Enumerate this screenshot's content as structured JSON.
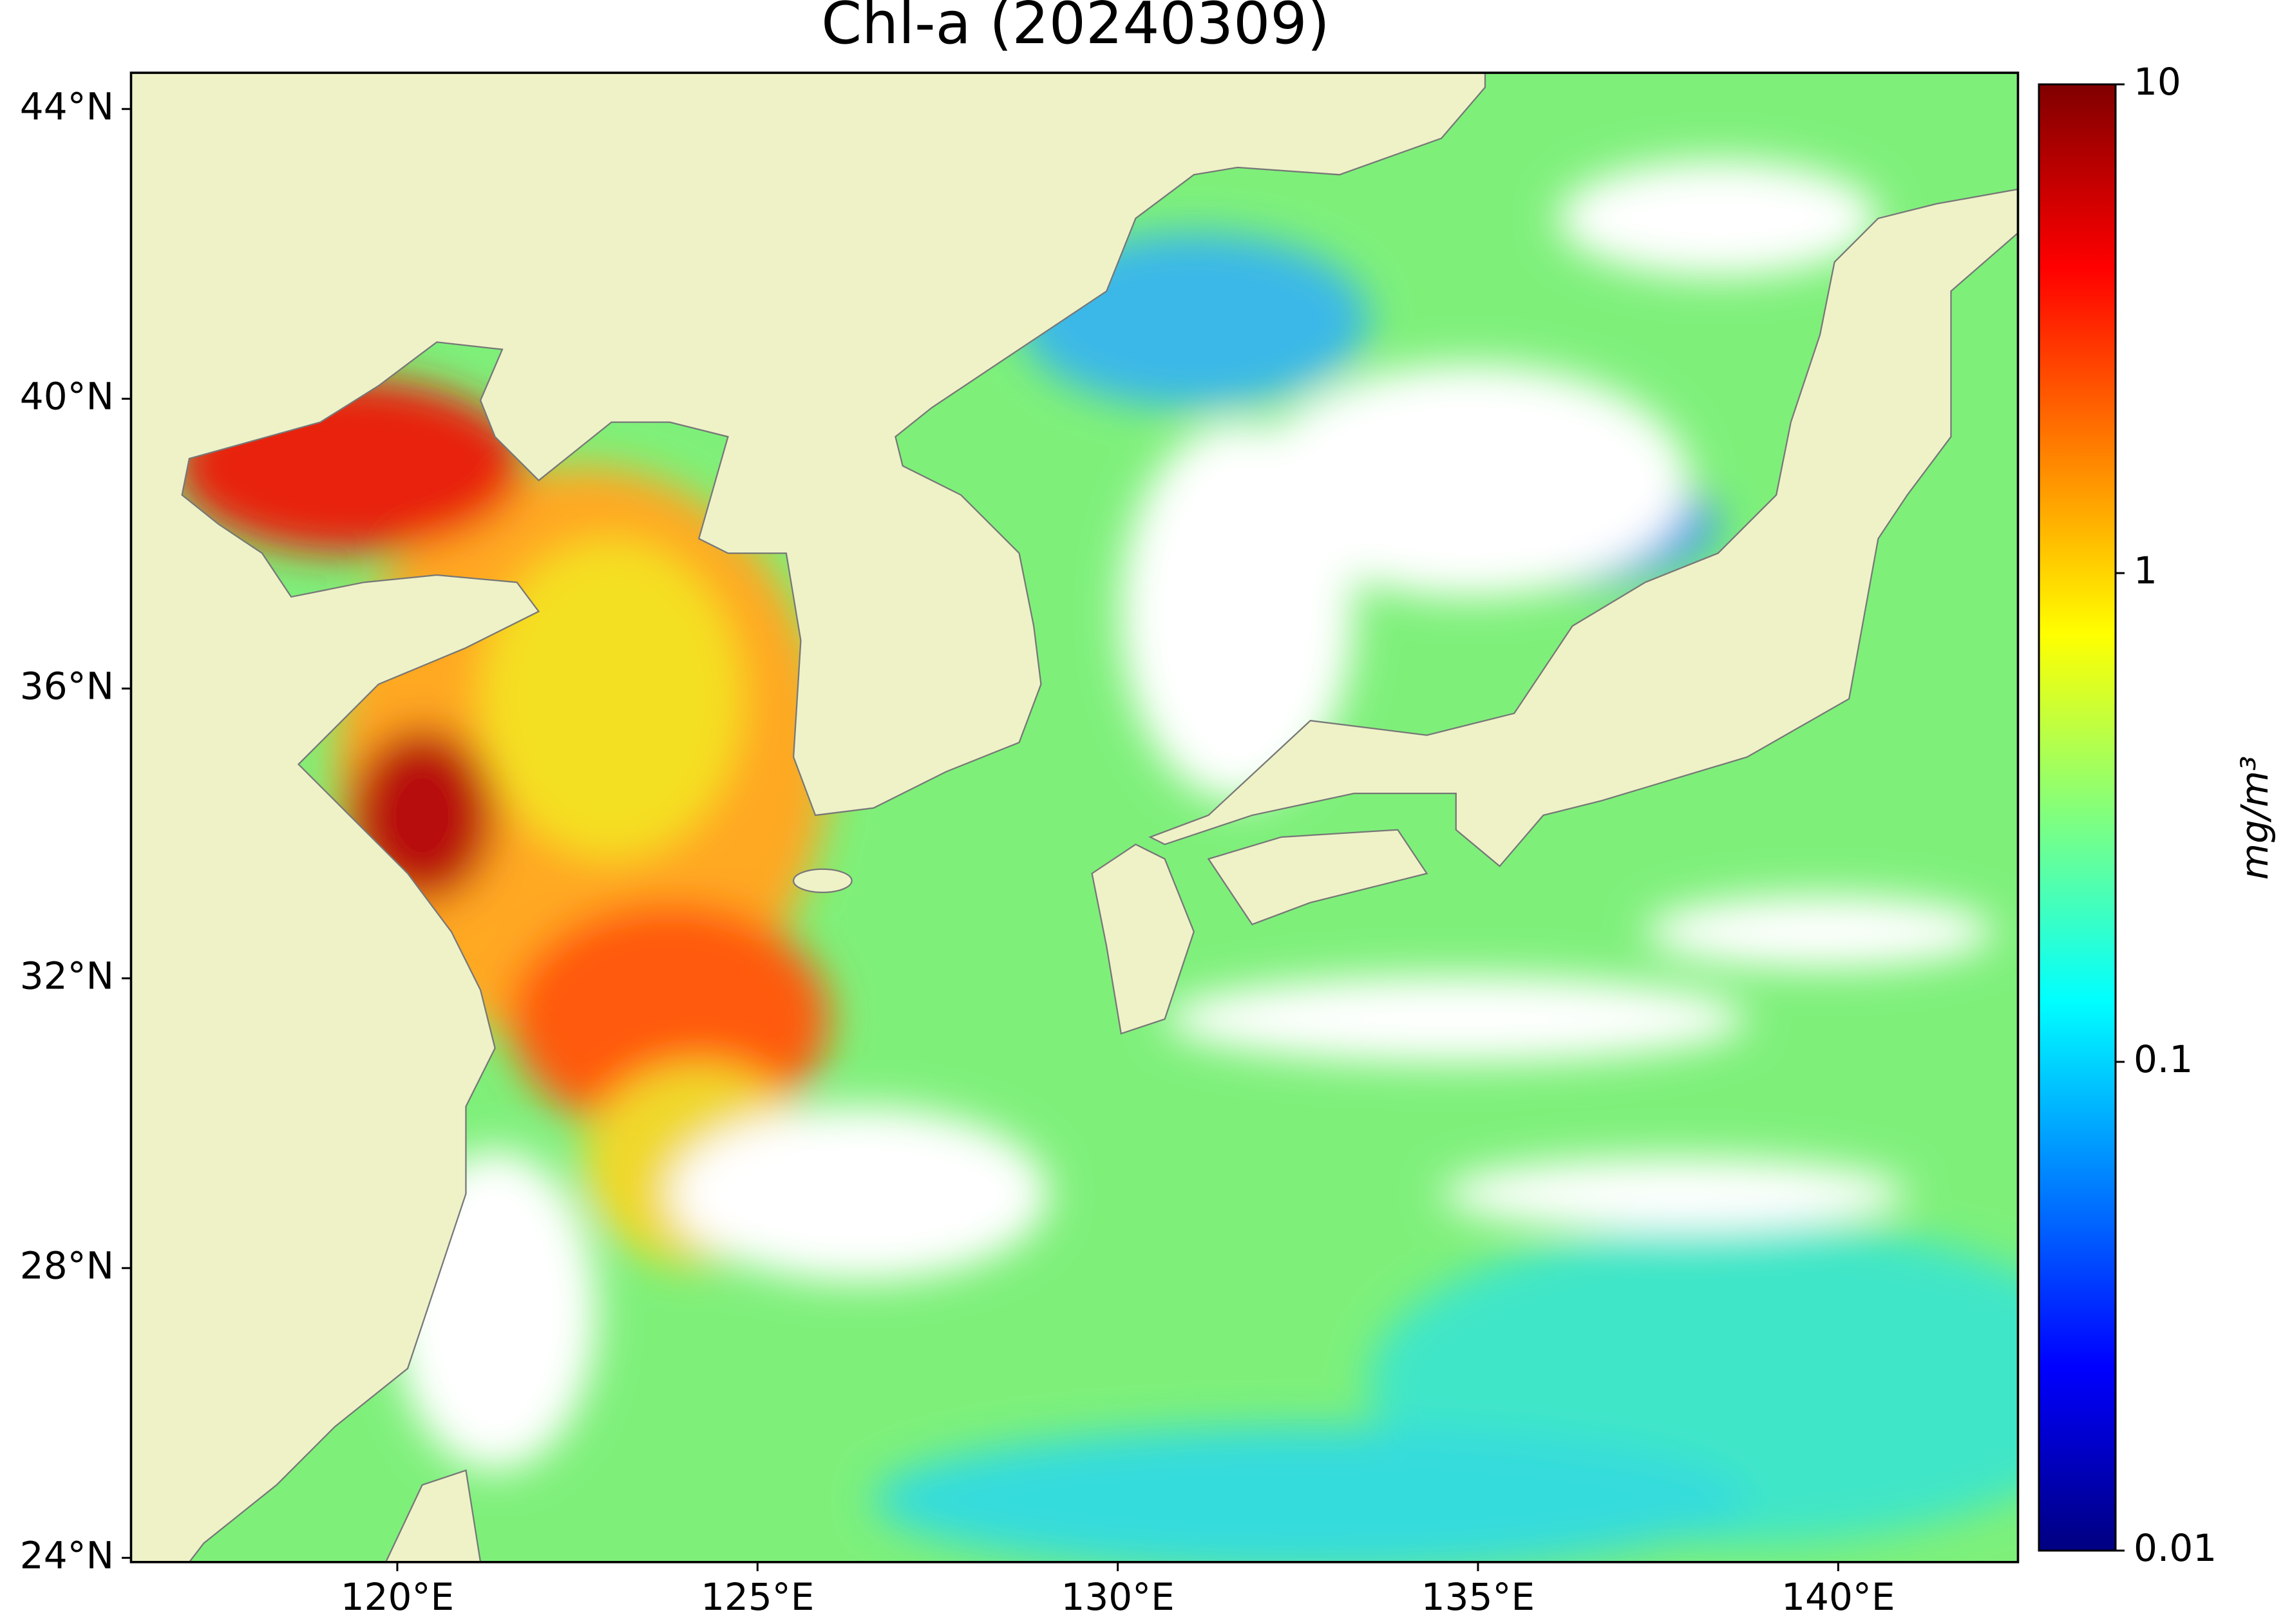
{
  "chart_data": {
    "type": "map",
    "title": "Chl-a (20240309)",
    "xlim": [
      116.3,
      142.5
    ],
    "ylim": [
      23.94,
      44.5
    ],
    "xticks": [
      {
        "value": 120,
        "label": "120°E"
      },
      {
        "value": 125,
        "label": "125°E"
      },
      {
        "value": 130,
        "label": "130°E"
      },
      {
        "value": 135,
        "label": "135°E"
      },
      {
        "value": 140,
        "label": "140°E"
      }
    ],
    "yticks": [
      {
        "value": 24,
        "label": "24°N"
      },
      {
        "value": 28,
        "label": "28°N"
      },
      {
        "value": 32,
        "label": "32°N"
      },
      {
        "value": 36,
        "label": "36°N"
      },
      {
        "value": 40,
        "label": "40°N"
      },
      {
        "value": 44,
        "label": "44°N"
      }
    ],
    "colorbar": {
      "label": "mg/m³",
      "lim": [
        0.01,
        10
      ],
      "ticks": [
        0.01,
        0.1,
        1,
        10
      ],
      "log_scale": true,
      "colormap": "jet"
    }
  }
}
